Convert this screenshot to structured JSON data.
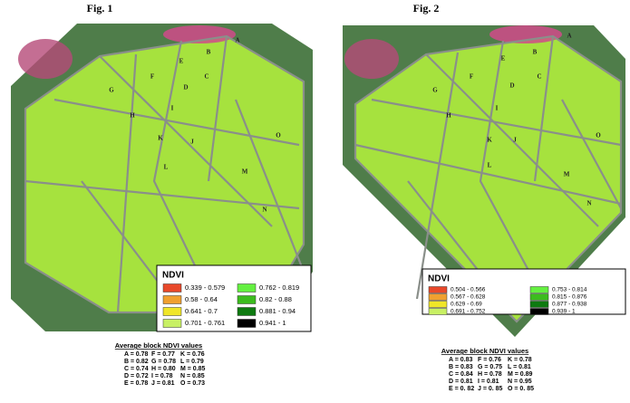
{
  "figures": [
    {
      "title": "Fig. 1",
      "block_labels": [
        "A",
        "B",
        "C",
        "D",
        "E",
        "F",
        "G",
        "H",
        "I",
        "J",
        "K",
        "L",
        "M",
        "N",
        "O"
      ],
      "legend": {
        "title": "NDVI",
        "items": [
          {
            "label": "0.339 - 0.579",
            "color": "#e8482a"
          },
          {
            "label": "0.58 - 0.64",
            "color": "#f0a030"
          },
          {
            "label": "0.641 - 0.7",
            "color": "#f0e628"
          },
          {
            "label": "0.701 - 0.761",
            "color": "#c8f064"
          },
          {
            "label": "0.762 - 0.819",
            "color": "#64f040"
          },
          {
            "label": "0.82 - 0.88",
            "color": "#3cbc1e"
          },
          {
            "label": "0.881 - 0.94",
            "color": "#0e7a10"
          },
          {
            "label": "0.941 - 1",
            "color": "#000000"
          }
        ]
      },
      "averages": {
        "title": "Average block NDVI values",
        "rows": [
          [
            "A = 0.78",
            "F = 0.77",
            "K = 0.76"
          ],
          [
            "B = 0.82",
            "G = 0.78",
            "L = 0.79"
          ],
          [
            "C = 0.74",
            "H = 0.80",
            "M = 0.85"
          ],
          [
            "D = 0.72",
            "I = 0.78",
            "N = 0.85"
          ],
          [
            "E = 0.78",
            "J = 0.81",
            "O = 0.73"
          ]
        ]
      }
    },
    {
      "title": "Fig. 2",
      "block_labels": [
        "A",
        "B",
        "C",
        "D",
        "E",
        "F",
        "G",
        "H",
        "I",
        "J",
        "K",
        "L",
        "M",
        "N",
        "O"
      ],
      "legend": {
        "title": "NDVI",
        "items": [
          {
            "label": "0.504 - 0.566",
            "color": "#e8482a"
          },
          {
            "label": "0.567 - 0.628",
            "color": "#f0a030"
          },
          {
            "label": "0.629 - 0.69",
            "color": "#f0e628"
          },
          {
            "label": "0.691 - 0.752",
            "color": "#c8f064"
          },
          {
            "label": "0.753 - 0.814",
            "color": "#64f040"
          },
          {
            "label": "0.815 - 0.876",
            "color": "#3cbc1e"
          },
          {
            "label": "0.877 - 0.938",
            "color": "#0e7a10"
          },
          {
            "label": "0.939 - 1",
            "color": "#000000"
          }
        ]
      },
      "averages": {
        "title": "Average block NDVI values",
        "rows": [
          [
            "A = 0.83",
            "F = 0.76",
            "K = 0.78"
          ],
          [
            "B = 0.83",
            "G = 0.75",
            "L = 0.81"
          ],
          [
            "C = 0.84",
            "H = 0.78",
            "M = 0.89"
          ],
          [
            "D = 0.81",
            "I = 0.81",
            "N = 0.95"
          ],
          [
            "E = 0. 82",
            "J = 0. 85",
            "O = 0. 85"
          ]
        ]
      }
    }
  ]
}
